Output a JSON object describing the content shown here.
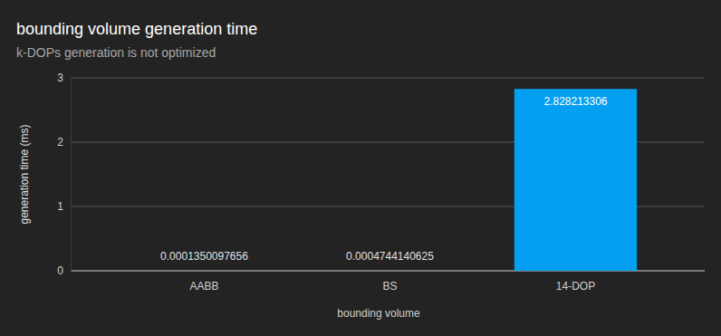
{
  "chart_data": {
    "type": "bar",
    "title": "bounding volume generation time",
    "subtitle": "k-DOPs generation is not optimized",
    "x_label": "bounding volume",
    "y_label": "generation time (ms)",
    "categories": [
      "AABB",
      "BS",
      "14-DOP"
    ],
    "values": [
      0.0001350097656,
      0.0004744140625,
      2.828213306
    ],
    "color": "#039ff0",
    "ylim": [
      0,
      3
    ],
    "yticks": [
      0,
      1,
      2,
      3
    ],
    "grid": true,
    "data_labels": true
  }
}
